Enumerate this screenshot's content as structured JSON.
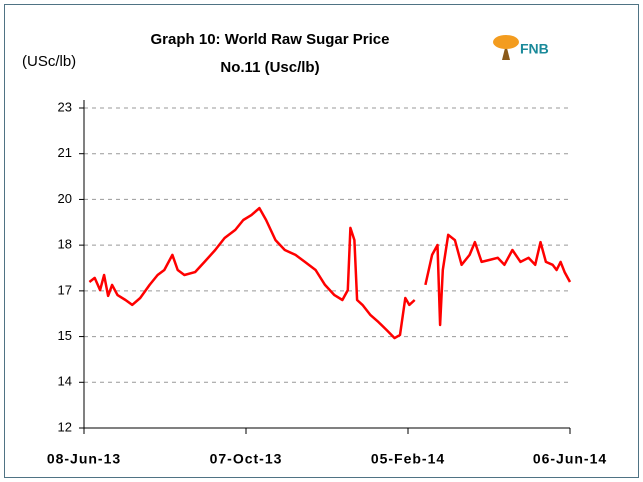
{
  "chart_data": {
    "type": "line",
    "title": [
      "Graph 10: World Raw Sugar Price",
      "No.11 (Usc/lb)"
    ],
    "ylabel": "(USc/lb)",
    "logo": "FNB",
    "x": [
      "2013-06-12",
      "2013-06-16",
      "2013-06-20",
      "2013-06-23",
      "2013-06-26",
      "2013-06-29",
      "2013-07-03",
      "2013-07-09",
      "2013-07-14",
      "2013-07-20",
      "2013-07-27",
      "2013-08-02",
      "2013-08-07",
      "2013-08-13",
      "2013-08-17",
      "2013-08-22",
      "2013-08-30",
      "2013-09-06",
      "2013-09-14",
      "2013-09-21",
      "2013-09-29",
      "2013-10-05",
      "2013-10-11",
      "2013-10-17",
      "2013-10-22",
      "2013-10-29",
      "2013-11-05",
      "2013-11-13",
      "2013-11-20",
      "2013-11-28",
      "2013-12-05",
      "2013-12-12",
      "2013-12-18",
      "2013-12-22",
      "2013-12-24",
      "2013-12-27",
      "2013-12-29",
      "2014-01-02",
      "2014-01-08",
      "2014-01-14",
      "2014-01-20",
      "2014-01-26",
      "2014-01-30",
      "2014-02-03",
      "2014-02-06",
      "2014-02-10",
      "2014-02-14",
      "2014-02-18",
      "2014-02-23",
      "2014-02-27",
      "2014-03-01",
      "2014-03-03",
      "2014-03-07",
      "2014-03-12",
      "2014-03-17",
      "2014-03-23",
      "2014-03-27",
      "2014-04-01",
      "2014-04-07",
      "2014-04-13",
      "2014-04-18",
      "2014-04-24",
      "2014-04-30",
      "2014-05-06",
      "2014-05-11",
      "2014-05-15",
      "2014-05-19",
      "2014-05-24",
      "2014-05-27",
      "2014-05-30",
      "2014-06-02",
      "2014-06-06"
    ],
    "series": [
      {
        "name": "World Raw Sugar Price No.11",
        "color": "#ff0000",
        "values": [
          17.02,
          17.16,
          16.74,
          17.26,
          16.54,
          16.92,
          16.57,
          16.4,
          16.23,
          16.47,
          16.92,
          17.26,
          17.43,
          17.95,
          17.43,
          17.26,
          17.36,
          17.71,
          18.12,
          18.53,
          18.81,
          19.15,
          19.32,
          19.56,
          19.15,
          18.46,
          18.12,
          17.95,
          17.71,
          17.43,
          16.92,
          16.57,
          16.4,
          16.74,
          18.88,
          18.46,
          16.4,
          16.23,
          15.88,
          15.64,
          15.37,
          15.09,
          15.2,
          16.47,
          16.23,
          16.4,
          null,
          16.92,
          17.95,
          18.29,
          15.54,
          17.43,
          18.64,
          18.46,
          17.61,
          17.95,
          18.39,
          17.71,
          17.78,
          17.85,
          17.61,
          18.12,
          17.71,
          17.85,
          17.61,
          18.39,
          17.71,
          17.61,
          17.43,
          17.71,
          17.36,
          17.02
        ]
      }
    ],
    "xlim": [
      "2013-06-08",
      "2014-06-06"
    ],
    "xticks": [
      {
        "value": "2013-06-08",
        "label": "08-Jun-13"
      },
      {
        "value": "2013-10-07",
        "label": "07-Oct-13"
      },
      {
        "value": "2014-02-05",
        "label": "05-Feb-14"
      },
      {
        "value": "2014-06-06",
        "label": "06-Jun-14"
      }
    ],
    "ylim": [
      12,
      23
    ],
    "yticks": [
      12,
      {
        "value": 13.571,
        "label": "14"
      },
      {
        "value": 15.143,
        "label": "15"
      },
      {
        "value": 16.714,
        "label": "17"
      },
      {
        "value": 18.286,
        "label": "18"
      },
      {
        "value": 19.857,
        "label": "20"
      },
      {
        "value": 21.429,
        "label": "21"
      },
      23
    ],
    "grid": true
  }
}
